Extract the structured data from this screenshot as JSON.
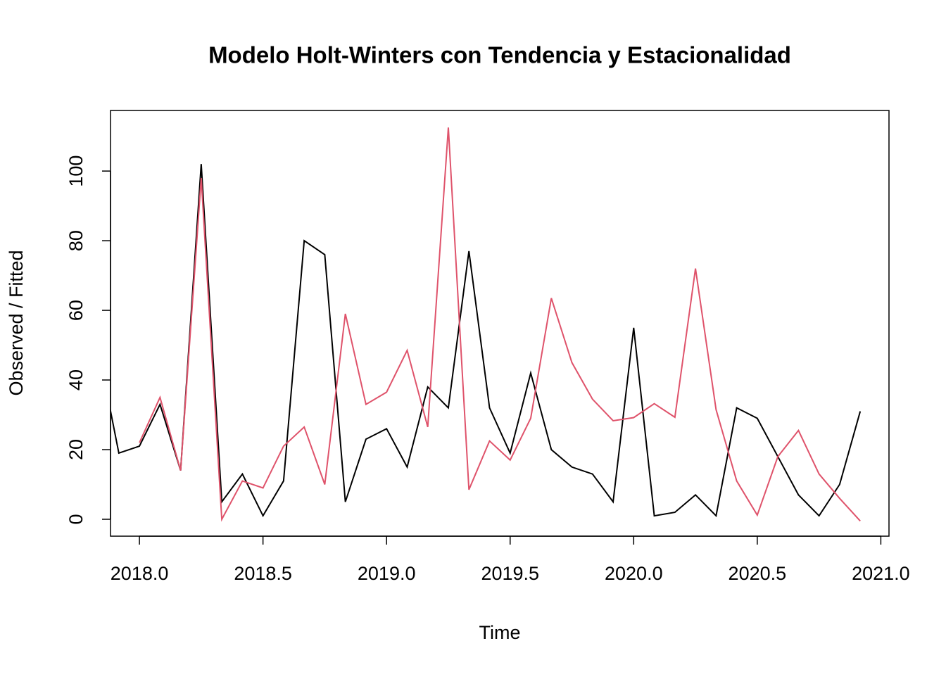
{
  "chart_data": {
    "type": "line",
    "title": "Modelo Holt-Winters con Tendencia y Estacionalidad",
    "x_label": "Time",
    "y_label": "Observed / Fitted",
    "x": [
      2017.8333,
      2017.9167,
      2018.0,
      2018.0833,
      2018.1667,
      2018.25,
      2018.3333,
      2018.4167,
      2018.5,
      2018.5833,
      2018.6667,
      2018.75,
      2018.8333,
      2018.9167,
      2019.0,
      2019.0833,
      2019.1667,
      2019.25,
      2019.3333,
      2019.4167,
      2019.5,
      2019.5833,
      2019.6667,
      2019.75,
      2019.8333,
      2019.9167,
      2020.0,
      2020.0833,
      2020.1667,
      2020.25,
      2020.3333,
      2020.4167,
      2020.5,
      2020.5833,
      2020.6667,
      2020.75,
      2020.8333,
      2020.9167
    ],
    "series": [
      {
        "color": "#000000",
        "values": [
          49,
          19,
          21,
          33,
          14,
          102,
          5,
          13,
          1,
          11,
          80,
          76,
          5,
          23,
          26,
          15,
          38,
          32,
          77,
          32,
          19,
          42,
          20,
          15,
          13,
          5,
          55,
          1,
          2,
          7,
          1,
          32,
          29,
          18,
          7,
          1,
          10,
          31
        ]
      },
      {
        "color": "#df536b",
        "values": [
          null,
          null,
          22,
          35,
          14,
          98,
          0,
          11,
          9,
          21,
          26.5,
          10,
          59,
          33,
          36.5,
          48.5,
          26.5,
          112.5,
          8.5,
          22.5,
          17,
          29,
          63.5,
          45,
          34.5,
          28.3,
          29.2,
          33.2,
          29.3,
          72,
          31.5,
          11,
          1.2,
          18,
          25.5,
          13,
          6,
          -0.5
        ]
      }
    ],
    "xlim": [
      2017.883,
      2021.033
    ],
    "ylim": [
      -4.85,
      117.4
    ],
    "xticks": [
      {
        "value": 2018,
        "label": "2018.0"
      },
      2018.5,
      {
        "value": 2019,
        "label": "2019.0"
      },
      2019.5,
      {
        "value": 2020,
        "label": "2020.0"
      },
      2020.5,
      {
        "value": 2021,
        "label": "2021.0"
      }
    ],
    "yticks": [
      0,
      20,
      40,
      60,
      80,
      100
    ]
  }
}
